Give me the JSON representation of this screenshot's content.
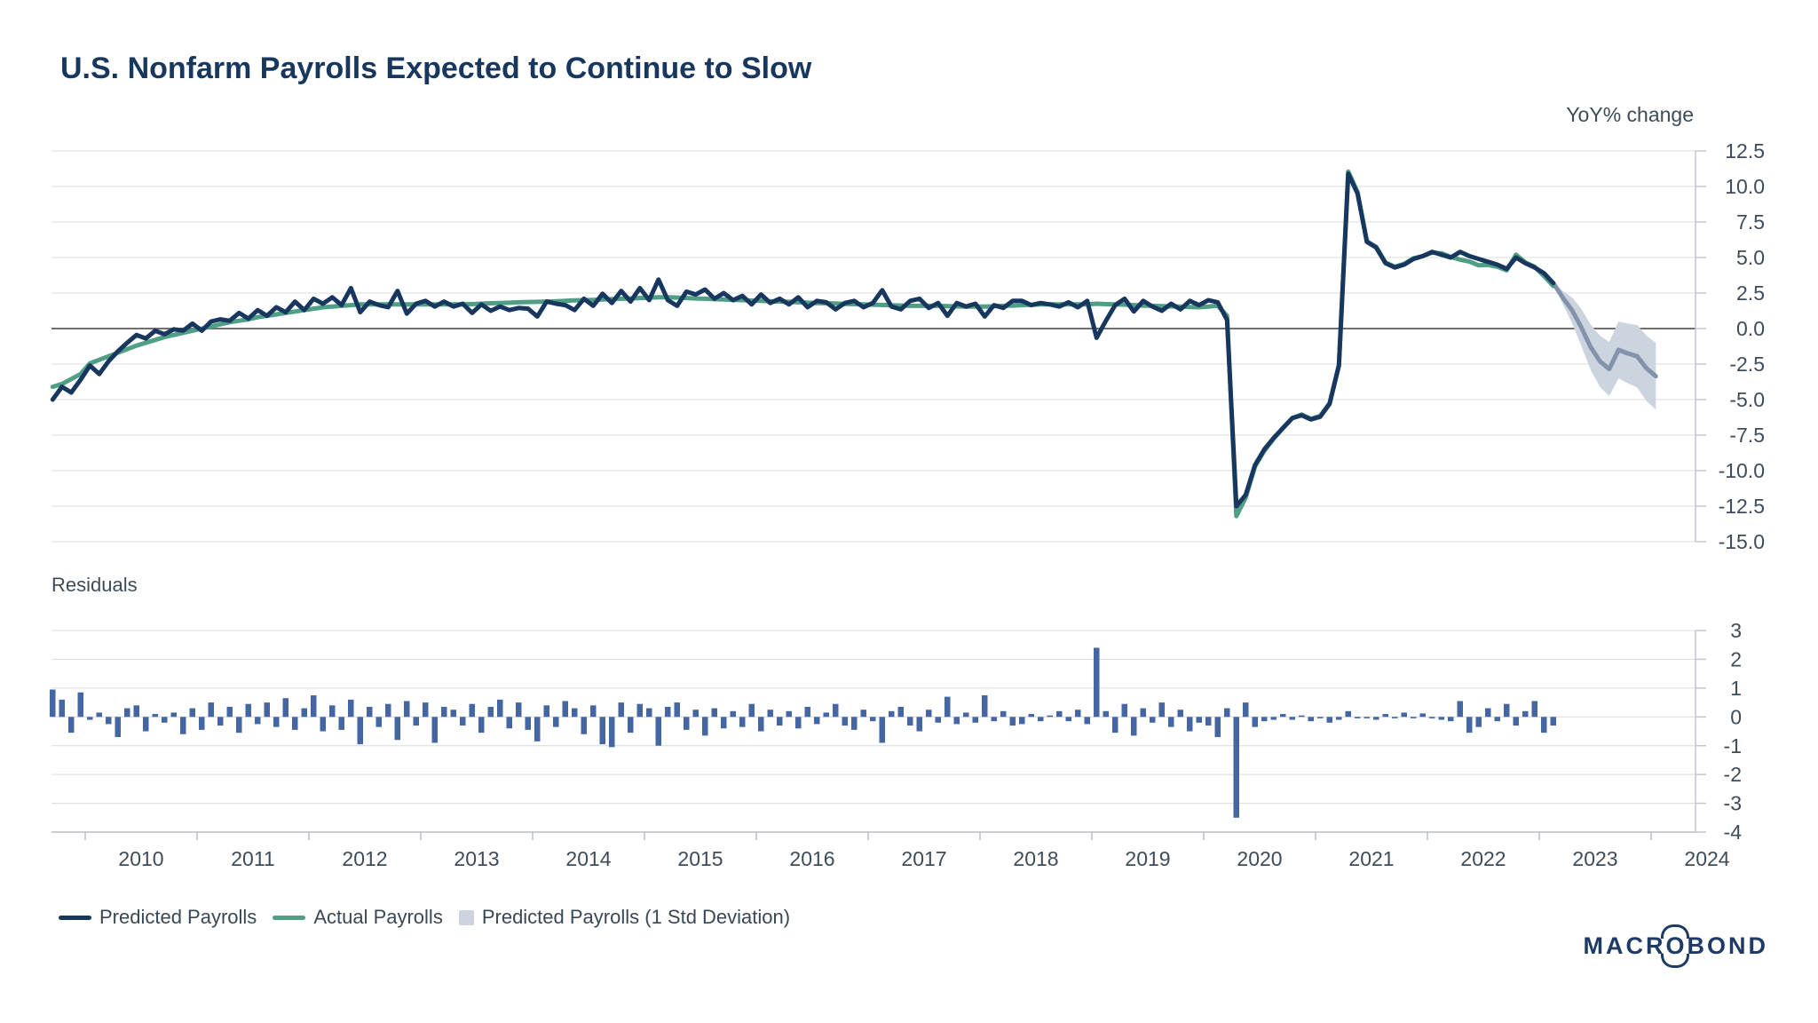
{
  "title": "U.S. Nonfarm Payrolls Expected to Continue to Slow",
  "axis_unit_label": "YoY% change",
  "residuals_panel_label": "Residuals",
  "legend": {
    "predicted": "Predicted Payrolls",
    "actual": "Actual Payrolls",
    "band": "Predicted Payrolls (1 Std Deviation)"
  },
  "logo_text": {
    "pre": "MACR",
    "o": "O",
    "post": "BOND"
  },
  "colors": {
    "predicted": "#17375e",
    "actual": "#4f9e86",
    "forecast": "#8293ab",
    "band": "#ccd4e0",
    "bars": "#4466a3",
    "grid": "#dcdcdc",
    "zero": "#6f6f6f",
    "axis": "#c2c7cd",
    "text": "#3e4c59",
    "title": "#17375e"
  },
  "chart_data": [
    {
      "type": "line",
      "title": "U.S. Nonfarm Payrolls Expected to Continue to Slow",
      "ylabel": "YoY% change",
      "ylim": [
        -15,
        12.5
      ],
      "yticks": [
        12.5,
        10,
        7.5,
        5,
        2.5,
        0,
        -2.5,
        -5,
        -7.5,
        -10,
        -12.5,
        -15
      ],
      "grid": true,
      "legend_position": "bottom-left",
      "x_start": {
        "year": 2009,
        "month": 9
      },
      "series": [
        {
          "name": "Predicted Payrolls",
          "values": [
            -5,
            -4.1,
            -4.5,
            -3.6,
            -2.6,
            -3.2,
            -2.3,
            -1.6,
            -1,
            -0.45,
            -0.7,
            -0.15,
            -0.4,
            -0.05,
            -0.15,
            0.35,
            -0.15,
            0.5,
            0.65,
            0.55,
            1.1,
            0.7,
            1.3,
            0.9,
            1.5,
            1.15,
            1.9,
            1.3,
            2.1,
            1.75,
            2.2,
            1.65,
            2.85,
            1.15,
            1.9,
            1.65,
            1.5,
            2.65,
            1.05,
            1.75,
            1.95,
            1.55,
            1.9,
            1.55,
            1.75,
            1.1,
            1.7,
            1.25,
            1.55,
            1.3,
            1.45,
            1.4,
            0.85,
            1.9,
            1.75,
            1.65,
            1.3,
            2.1,
            1.6,
            2.45,
            1.8,
            2.65,
            1.9,
            2.85,
            2,
            3.45,
            2,
            1.6,
            2.6,
            2.4,
            2.75,
            2.1,
            2.5,
            2,
            2.3,
            1.7,
            2.4,
            1.8,
            2.1,
            1.7,
            2.2,
            1.5,
            1.95,
            1.85,
            1.35,
            1.8,
            1.95,
            1.5,
            1.8,
            2.7,
            1.55,
            1.35,
            1.95,
            2.1,
            1.45,
            1.8,
            0.9,
            1.8,
            1.55,
            1.75,
            0.85,
            1.65,
            1.45,
            1.95,
            1.95,
            1.65,
            1.8,
            1.7,
            1.55,
            1.85,
            1.5,
            1.95,
            -0.65,
            0.55,
            1.65,
            2.1,
            1.2,
            1.95,
            1.55,
            1.25,
            1.75,
            1.35,
            1.95,
            1.65,
            2,
            1.85,
            0.6,
            -12.5,
            -11.7,
            -9.6,
            -8.5,
            -7.7,
            -7,
            -6.3,
            -6.1,
            -6.4,
            -6.2,
            -5.3,
            -2.6,
            10.9,
            9.5,
            6.1,
            5.7,
            4.6,
            4.3,
            4.5,
            4.9,
            5.1,
            5.4,
            5.2,
            5,
            5.4,
            5.1,
            4.9,
            4.7,
            4.5,
            4.2,
            5,
            4.6,
            4.3,
            3.9,
            3.2
          ]
        },
        {
          "name": "Actual Payrolls",
          "values": [
            -4.1,
            -3.9,
            -3.55,
            -3.2,
            -2.45,
            -2.2,
            -1.95,
            -1.7,
            -1.45,
            -1.2,
            -1,
            -0.8,
            -0.6,
            -0.45,
            -0.3,
            -0.15,
            0,
            0.15,
            0.3,
            0.45,
            0.55,
            0.65,
            0.8,
            0.9,
            1,
            1.1,
            1.2,
            1.3,
            1.4,
            1.5,
            1.55,
            1.6,
            1.65,
            1.7,
            1.7,
            1.7,
            1.7,
            1.7,
            1.7,
            1.7,
            1.7,
            1.7,
            1.7,
            1.7,
            1.7,
            1.72,
            1.75,
            1.78,
            1.8,
            1.82,
            1.85,
            1.87,
            1.88,
            1.9,
            1.92,
            1.95,
            1.98,
            2,
            2.02,
            2.05,
            2.07,
            2.1,
            2.12,
            2.15,
            2.17,
            2.2,
            2.2,
            2.18,
            2.15,
            2.12,
            2.1,
            2.07,
            2.05,
            2.02,
            2,
            1.97,
            1.95,
            1.92,
            1.9,
            1.88,
            1.85,
            1.82,
            1.8,
            1.78,
            1.76,
            1.74,
            1.72,
            1.7,
            1.68,
            1.66,
            1.64,
            1.62,
            1.6,
            1.6,
            1.6,
            1.6,
            1.58,
            1.56,
            1.55,
            1.55,
            1.55,
            1.57,
            1.6,
            1.62,
            1.65,
            1.67,
            1.7,
            1.7,
            1.7,
            1.7,
            1.7,
            1.7,
            1.75,
            1.72,
            1.7,
            1.68,
            1.65,
            1.62,
            1.6,
            1.58,
            1.56,
            1.54,
            1.52,
            1.5,
            1.55,
            1.6,
            0.9,
            -13.2,
            -11.9,
            -9.7,
            -8.6,
            -7.75,
            -7,
            -6.3,
            -6.05,
            -6.35,
            -6.15,
            -5.25,
            -2.55,
            11.05,
            9.6,
            6.15,
            5.75,
            4.65,
            4.35,
            4.55,
            4.95,
            5.1,
            5.35,
            5.3,
            5.05,
            4.85,
            4.72,
            4.45,
            4.48,
            4.35,
            4.1,
            5.2,
            4.65,
            4.35,
            3.7,
            3
          ]
        },
        {
          "name": "Predicted Payrolls (1 Std Deviation)",
          "forecast": true,
          "start": {
            "year": 2023,
            "month": 3
          },
          "values": [
            2.2,
            1.3,
            0.1,
            -1.3,
            -2.3,
            -2.85,
            -1.5,
            -1.75,
            -1.95,
            -2.8,
            -3.35
          ],
          "band_halfwidth": [
            0.45,
            0.9,
            1.3,
            1.6,
            1.8,
            1.9,
            2,
            2.1,
            2.2,
            2.3,
            2.35
          ]
        }
      ],
      "xtick_years": [
        2010,
        2011,
        2012,
        2013,
        2014,
        2015,
        2016,
        2017,
        2018,
        2019,
        2020,
        2021,
        2022,
        2023,
        2024
      ]
    },
    {
      "type": "bar",
      "title": "Residuals",
      "ylim": [
        -4,
        3
      ],
      "yticks": [
        3,
        2,
        1,
        0,
        -1,
        -2,
        -3,
        -4
      ],
      "x_start": {
        "year": 2009,
        "month": 9
      },
      "values": [
        0.95,
        0.6,
        -0.55,
        0.85,
        -0.1,
        0.15,
        -0.25,
        -0.7,
        0.3,
        0.4,
        -0.5,
        0.1,
        -0.2,
        0.15,
        -0.6,
        0.3,
        -0.45,
        0.5,
        -0.3,
        0.35,
        -0.55,
        0.45,
        -0.25,
        0.5,
        -0.35,
        0.65,
        -0.45,
        0.3,
        0.75,
        -0.5,
        0.4,
        -0.45,
        0.6,
        -0.95,
        0.35,
        -0.35,
        0.45,
        -0.8,
        0.55,
        -0.3,
        0.5,
        -0.9,
        0.35,
        0.25,
        -0.3,
        0.45,
        -0.55,
        0.35,
        0.6,
        -0.4,
        0.5,
        -0.45,
        -0.85,
        0.4,
        -0.35,
        0.55,
        0.3,
        -0.6,
        0.4,
        -0.95,
        -1.05,
        0.5,
        -0.55,
        0.45,
        0.3,
        -1,
        0.35,
        0.5,
        -0.45,
        0.25,
        -0.65,
        0.3,
        -0.4,
        0.2,
        -0.35,
        0.45,
        -0.5,
        0.25,
        -0.3,
        0.2,
        -0.4,
        0.35,
        -0.25,
        0.15,
        0.45,
        -0.3,
        -0.45,
        0.25,
        -0.15,
        -0.9,
        0.2,
        0.35,
        -0.3,
        -0.5,
        0.25,
        -0.2,
        0.7,
        -0.25,
        0.15,
        -0.2,
        0.75,
        -0.15,
        0.2,
        -0.3,
        -0.25,
        0.1,
        -0.15,
        0.05,
        0.2,
        -0.15,
        0.25,
        -0.25,
        2.4,
        0.2,
        -0.55,
        0.45,
        -0.65,
        0.3,
        -0.2,
        0.5,
        -0.35,
        0.25,
        -0.5,
        -0.2,
        -0.3,
        -0.7,
        0.3,
        -3.5,
        0.5,
        -0.35,
        -0.15,
        -0.1,
        0.1,
        -0.1,
        0.05,
        -0.15,
        -0.05,
        -0.2,
        -0.1,
        0.2,
        -0.05,
        -0.05,
        -0.1,
        0.1,
        -0.05,
        0.15,
        -0.05,
        0.12,
        -0.05,
        -0.1,
        -0.15,
        0.55,
        -0.55,
        -0.35,
        0.3,
        -0.15,
        0.45,
        -0.3,
        0.2,
        0.55,
        -0.55,
        -0.3
      ]
    }
  ]
}
